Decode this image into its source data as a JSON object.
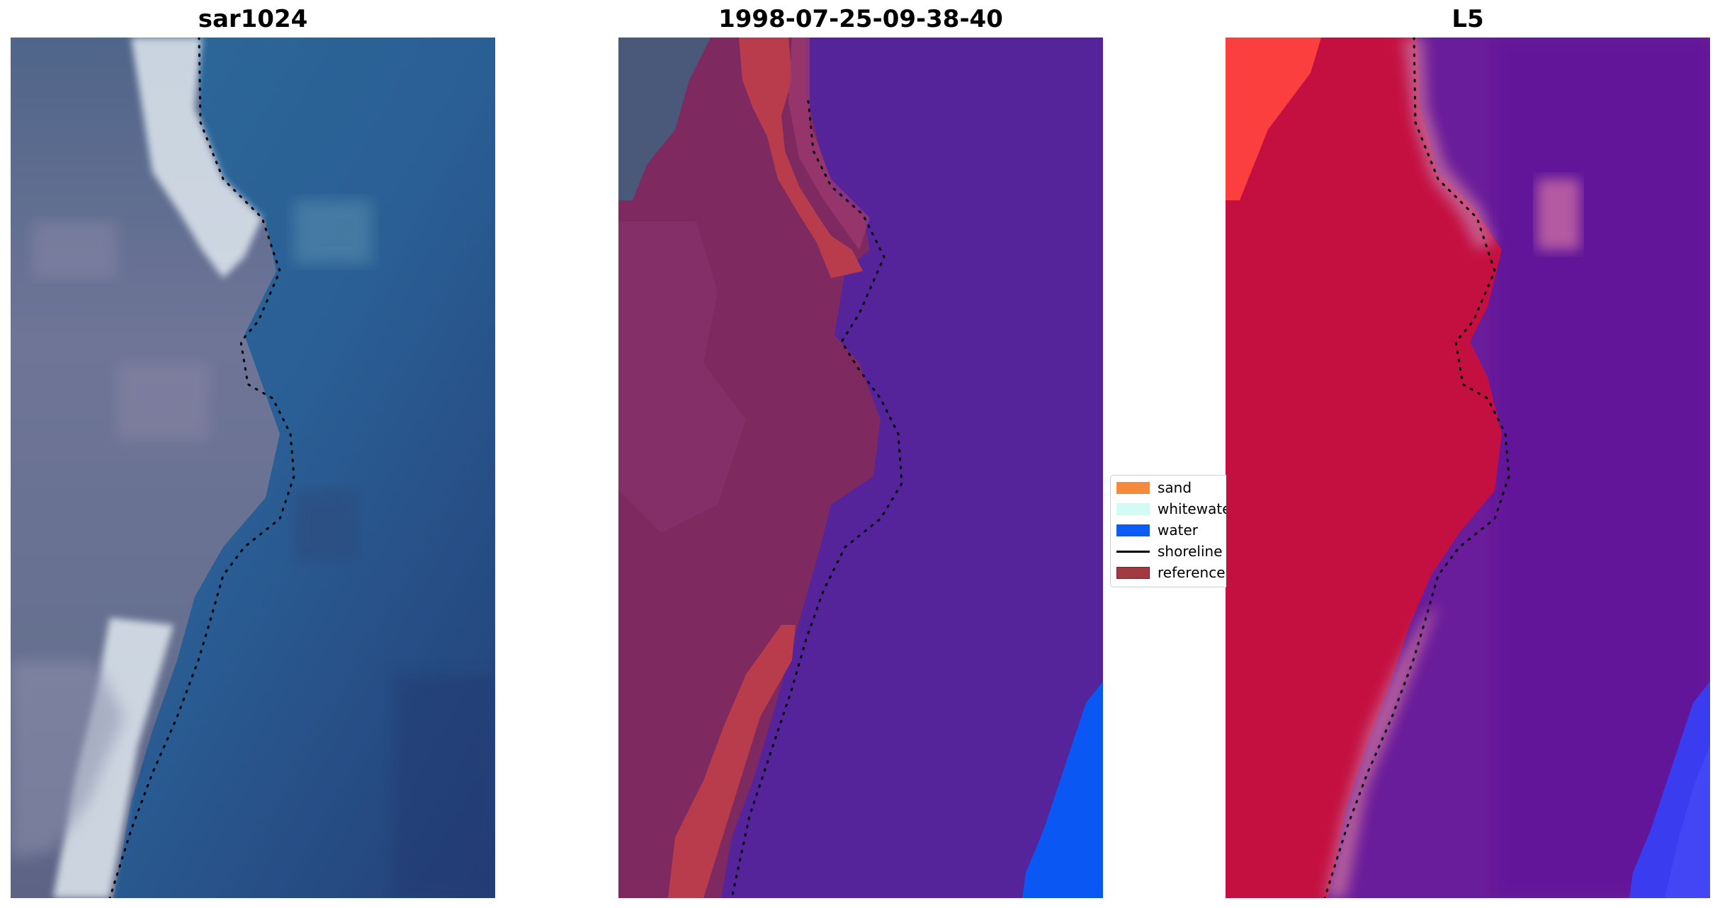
{
  "panels": [
    {
      "title": "sar1024"
    },
    {
      "title": "1998-07-25-09-38-40"
    },
    {
      "title": "L5"
    }
  ],
  "legend": {
    "items": [
      {
        "label": "sand",
        "color": "#f58a3c",
        "kind": "patch"
      },
      {
        "label": "whitewater",
        "color": "#d2fbf6",
        "kind": "patch"
      },
      {
        "label": "water",
        "color": "#0d5cf5",
        "kind": "patch"
      },
      {
        "label": "shoreline",
        "color": "#000000",
        "kind": "line"
      },
      {
        "label": "reference",
        "color": "#a23a42",
        "kind": "patch"
      }
    ]
  },
  "colors": {
    "sar_water": "#2a5f95",
    "sar_land": "#6c7593",
    "sar_white": "#e6eef3",
    "class_water": "#55239a",
    "class_land": "#7e2a60",
    "class_ref": "#b83c4c",
    "class_sea_blue": "#0b57f4",
    "l5_land": "#c41040",
    "l5_water": "#6a1d9a",
    "l5_red": "#fb3f3f",
    "l5_blue": "#3a3cf0"
  }
}
